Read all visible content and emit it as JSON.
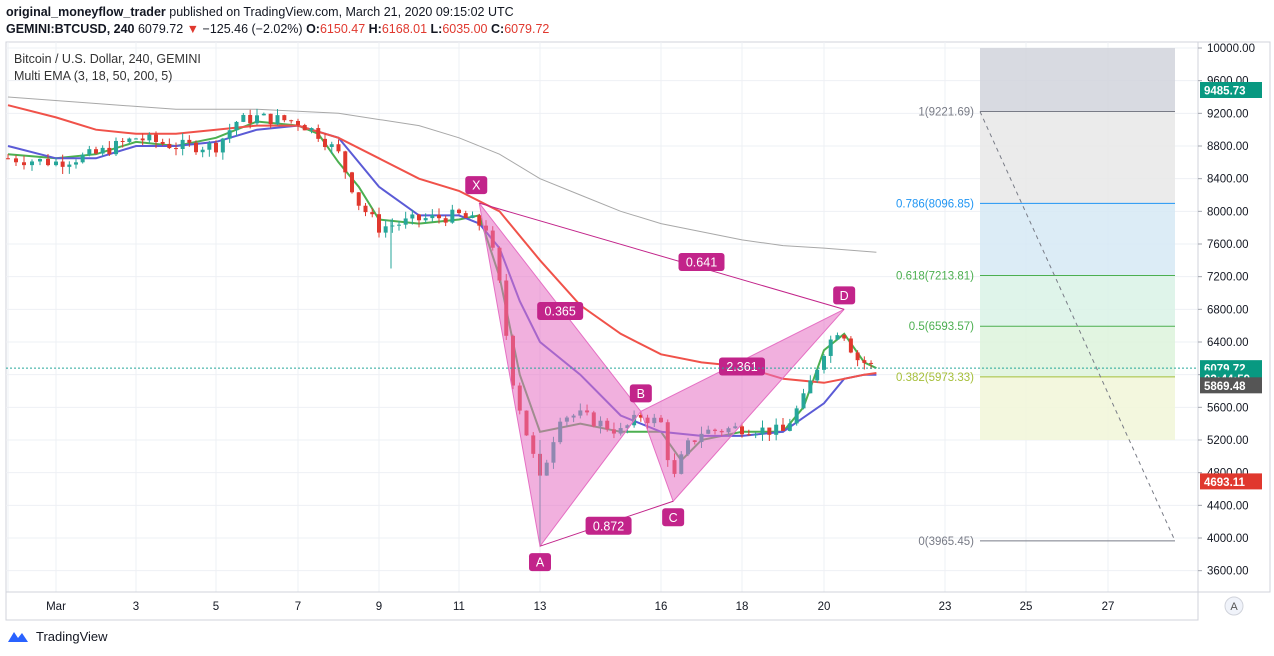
{
  "header": {
    "publisher": "original_moneyflow_trader",
    "published_text": "published on TradingView.com, March 21, 2020 09:15:02 UTC",
    "symbol": "GEMINI:BTCUSD, 240",
    "last": "6079.72",
    "change": "−125.46 (−2.02%)",
    "o_label": "O:",
    "o_val": "6150.47",
    "h_label": "H:",
    "h_val": "6168.01",
    "l_label": "L:",
    "l_val": "6035.00",
    "c_label": "C:",
    "c_val": "6079.72"
  },
  "legend": {
    "title": "Bitcoin / U.S. Dollar, 240, GEMINI",
    "indicator": "Multi EMA (3, 18, 50, 200, 5)"
  },
  "footer": {
    "brand": "TradingView"
  },
  "colors": {
    "up": "#26a69a",
    "down": "#e0382e",
    "pattern": "#e56fc3",
    "pattern_label": "#c2248a",
    "ema_fast": "#4caf50",
    "ema_18": "#5b5bd6",
    "ema_50": "#f0524a",
    "ema_200": "#a8a8a8"
  },
  "chart_data": {
    "type": "candlestick",
    "title": "Bitcoin / U.S. Dollar, 240, GEMINI",
    "y_axis": {
      "ticks": [
        "10000.00",
        "9600.00",
        "9200.00",
        "8800.00",
        "8400.00",
        "8000.00",
        "7600.00",
        "7200.00",
        "6800.00",
        "6400.00",
        "6000.00",
        "5600.00",
        "5200.00",
        "4800.00",
        "4400.00",
        "4000.00",
        "3600.00"
      ],
      "ylim": [
        3400,
        10000
      ]
    },
    "x_axis": {
      "ticks": [
        "Mar",
        "3",
        "5",
        "7",
        "9",
        "11",
        "13",
        "16",
        "18",
        "20",
        "23",
        "25",
        "27"
      ]
    },
    "price_labels": [
      {
        "value": "9485.73",
        "color": "#089981",
        "price": 9485.73
      },
      {
        "value": "6079.72",
        "color": "#089981",
        "price": 6079.72
      },
      {
        "value": "02:44:59",
        "color": "#089981",
        "price": 5955
      },
      {
        "value": "5869.48",
        "color": "#555555",
        "price": 5869.48
      },
      {
        "value": "4693.11",
        "color": "#e0382e",
        "price": 4693.11
      }
    ],
    "harmonic_pattern": {
      "points": [
        {
          "label": "X",
          "day": 11.5,
          "price": 8100
        },
        {
          "label": "A",
          "day": 13.0,
          "price": 3900
        },
        {
          "label": "B",
          "day": 15.5,
          "price": 5550
        },
        {
          "label": "C",
          "day": 16.3,
          "price": 4450
        },
        {
          "label": "D",
          "day": 20.5,
          "price": 6800
        }
      ],
      "ratios": [
        {
          "value": "0.641",
          "day": 17.0,
          "price": 7380
        },
        {
          "value": "0.365",
          "day": 13.5,
          "price": 6780
        },
        {
          "value": "0.872",
          "day": 14.7,
          "price": 4150
        },
        {
          "value": "2.361",
          "day": 18.0,
          "price": 6100
        }
      ]
    },
    "fibonacci": {
      "levels": [
        {
          "ratio": "1",
          "price_label": "9221.69",
          "price": 9221.69,
          "line": "#787b86",
          "fill": "#d1d4dc"
        },
        {
          "ratio": "0.786",
          "price_label": "8096.85",
          "price": 8096.85,
          "line": "#2196f3",
          "fill": "#e8e8e8"
        },
        {
          "ratio": "0.618",
          "price_label": "7213.81",
          "price": 7213.81,
          "line": "#4caf50",
          "fill": "#d6e9f5"
        },
        {
          "ratio": "0.5",
          "price_label": "6593.57",
          "price": 6593.57,
          "line": "#4caf50",
          "fill": "#d9f2e6"
        },
        {
          "ratio": "0.382",
          "price_label": "5973.33",
          "price": 5973.33,
          "line": "#a6bf3a",
          "fill": "#ddf3dc"
        },
        {
          "ratio": "0",
          "price_label": "3965.45",
          "price": 3965.45,
          "line": "#787b86",
          "fill": "#f1f6d8"
        }
      ],
      "top_price": 10000,
      "bottom_fill_price": 5200
    },
    "series": [
      {
        "name": "EMA 3",
        "points": [
          [
            0,
            8700
          ],
          [
            1,
            8650
          ],
          [
            2,
            8700
          ],
          [
            3,
            8850
          ],
          [
            4,
            8800
          ],
          [
            5,
            8900
          ],
          [
            6,
            9100
          ],
          [
            7,
            9050
          ],
          [
            7.5,
            8950
          ],
          [
            8,
            8600
          ],
          [
            8.5,
            8300
          ],
          [
            9,
            7900
          ],
          [
            10,
            7850
          ],
          [
            11,
            7900
          ],
          [
            11.5,
            7950
          ],
          [
            12,
            7200
          ],
          [
            12.5,
            6000
          ],
          [
            13,
            5300
          ],
          [
            14,
            5400
          ],
          [
            15,
            5300
          ],
          [
            16,
            5300
          ],
          [
            16.5,
            4950
          ],
          [
            17,
            5200
          ],
          [
            18,
            5300
          ],
          [
            19,
            5300
          ],
          [
            19.5,
            5600
          ],
          [
            20,
            6300
          ],
          [
            20.5,
            6500
          ],
          [
            21,
            6150
          ],
          [
            21.3,
            6080
          ]
        ]
      },
      {
        "name": "EMA 18",
        "points": [
          [
            0,
            8800
          ],
          [
            1,
            8650
          ],
          [
            2,
            8650
          ],
          [
            3,
            8800
          ],
          [
            4,
            8800
          ],
          [
            5,
            8850
          ],
          [
            6,
            9000
          ],
          [
            7,
            9050
          ],
          [
            8,
            8900
          ],
          [
            9,
            8300
          ],
          [
            10,
            7950
          ],
          [
            11,
            7950
          ],
          [
            11.5,
            7850
          ],
          [
            12,
            7550
          ],
          [
            12.5,
            6900
          ],
          [
            13,
            6400
          ],
          [
            14,
            6000
          ],
          [
            15,
            5500
          ],
          [
            16,
            5300
          ],
          [
            17,
            5250
          ],
          [
            18,
            5250
          ],
          [
            19,
            5300
          ],
          [
            20,
            5650
          ],
          [
            20.5,
            5950
          ],
          [
            21,
            6000
          ],
          [
            21.3,
            6000
          ]
        ]
      },
      {
        "name": "EMA 50",
        "points": [
          [
            0,
            9300
          ],
          [
            1,
            9150
          ],
          [
            2,
            9000
          ],
          [
            3,
            8950
          ],
          [
            4,
            8950
          ],
          [
            5,
            9000
          ],
          [
            6,
            9050
          ],
          [
            7,
            9050
          ],
          [
            8,
            8900
          ],
          [
            9,
            8650
          ],
          [
            10,
            8400
          ],
          [
            11,
            8250
          ],
          [
            12,
            8000
          ],
          [
            13,
            7400
          ],
          [
            14,
            6850
          ],
          [
            15,
            6500
          ],
          [
            16,
            6250
          ],
          [
            17,
            6150
          ],
          [
            18,
            6100
          ],
          [
            19,
            5950
          ],
          [
            20,
            5900
          ],
          [
            20.5,
            5950
          ],
          [
            21,
            6000
          ],
          [
            21.3,
            6020
          ]
        ]
      },
      {
        "name": "EMA 200",
        "points": [
          [
            0,
            9400
          ],
          [
            2,
            9320
          ],
          [
            4,
            9250
          ],
          [
            6,
            9250
          ],
          [
            8,
            9200
          ],
          [
            10,
            9050
          ],
          [
            11,
            8900
          ],
          [
            12,
            8700
          ],
          [
            13,
            8400
          ],
          [
            14,
            8200
          ],
          [
            15,
            8000
          ],
          [
            16,
            7850
          ],
          [
            17,
            7750
          ],
          [
            18,
            7650
          ],
          [
            19,
            7580
          ],
          [
            20,
            7550
          ],
          [
            21.3,
            7500
          ]
        ]
      }
    ],
    "candles_approx": "4-hour candles from late Feb to Mar 21 2020; price ~8700 falling to ~3900 on Mar 13, recovering to ~6800 on Mar 20, last close 6079.72"
  }
}
